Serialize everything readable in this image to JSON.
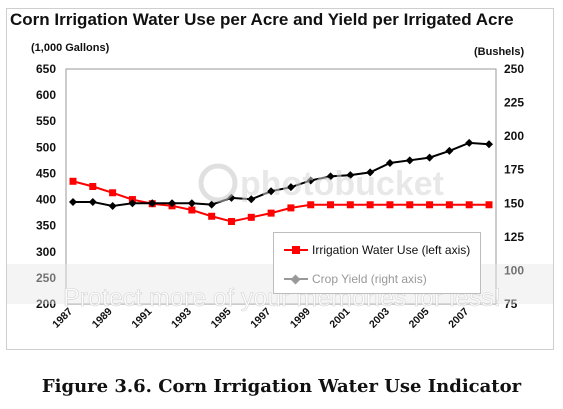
{
  "caption": "Figure 3.6. Corn Irrigation Water Use Indicator",
  "watermark": {
    "brand": "photobucket",
    "tagline": "Protect more of your memories for less!"
  },
  "chart_data": {
    "type": "line",
    "title": "Corn Irrigation Water Use per Acre and Yield per Irrigated Acre",
    "left_axis_unit": "(1,000 Gallons)",
    "right_axis_unit": "(Bushels)",
    "x": [
      1987,
      1988,
      1989,
      1990,
      1991,
      1992,
      1993,
      1994,
      1995,
      1996,
      1997,
      1998,
      1999,
      2000,
      2001,
      2002,
      2003,
      2004,
      2005,
      2006,
      2007,
      2008
    ],
    "x_tick_labels": [
      "1987",
      "1989",
      "1991",
      "1993",
      "1995",
      "1997",
      "1999",
      "2001",
      "2003",
      "2005",
      "2007"
    ],
    "y_left_ticks": [
      "650",
      "600",
      "550",
      "500",
      "450",
      "400",
      "350",
      "300",
      "250",
      "200"
    ],
    "y_right_ticks": [
      "250",
      "225",
      "200",
      "175",
      "150",
      "125",
      "100",
      "75"
    ],
    "ylim_left": [
      200,
      650
    ],
    "ylim_right": [
      75,
      250
    ],
    "grid": false,
    "legend_position": "lower-right",
    "series": [
      {
        "name": "Irrigation Water Use  (left axis)",
        "axis": "left",
        "color": "#ff0000",
        "marker": "square",
        "values": [
          435,
          425,
          413,
          400,
          392,
          388,
          380,
          368,
          358,
          366,
          374,
          384,
          390,
          390,
          390,
          390,
          390,
          390,
          390,
          390,
          390,
          390
        ]
      },
      {
        "name": "Crop Yield (right axis)",
        "axis": "right",
        "color": "#000000",
        "marker": "diamond",
        "values": [
          151,
          151,
          148,
          150,
          150,
          150,
          150,
          149,
          154,
          153,
          159,
          162,
          167,
          170,
          171,
          173,
          180,
          182,
          184,
          189,
          195,
          194
        ]
      }
    ]
  }
}
